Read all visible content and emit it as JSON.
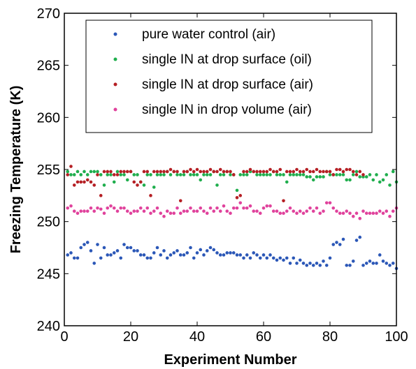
{
  "chart_data": {
    "type": "scatter",
    "title": "",
    "xlabel": "Experiment Number",
    "ylabel": "Freezing Temperature (K)",
    "xlim": [
      0,
      100
    ],
    "ylim": [
      240,
      270
    ],
    "xticks": [
      "0",
      "20",
      "40",
      "60",
      "80",
      "100"
    ],
    "yticks": [
      "240",
      "245",
      "250",
      "255",
      "260",
      "265",
      "270"
    ],
    "grid": false,
    "legend_position": "top",
    "series": [
      {
        "name": "pure water control (air)",
        "color": "#2b57b7",
        "x": [
          1,
          2,
          3,
          4,
          5,
          6,
          7,
          8,
          9,
          10,
          11,
          12,
          13,
          14,
          15,
          16,
          17,
          18,
          19,
          20,
          21,
          22,
          23,
          24,
          25,
          26,
          27,
          28,
          29,
          30,
          31,
          32,
          33,
          34,
          35,
          36,
          37,
          38,
          39,
          40,
          41,
          42,
          43,
          44,
          45,
          46,
          47,
          48,
          49,
          50,
          51,
          52,
          53,
          54,
          55,
          56,
          57,
          58,
          59,
          60,
          61,
          62,
          63,
          64,
          65,
          66,
          67,
          68,
          69,
          70,
          71,
          72,
          73,
          74,
          75,
          76,
          77,
          78,
          79,
          80,
          81,
          82,
          83,
          84,
          85,
          86,
          87,
          88,
          89,
          90,
          91,
          92,
          93,
          94,
          95,
          96,
          97,
          98,
          99,
          100
        ],
        "y": [
          246.8,
          247.0,
          246.5,
          246.5,
          247.5,
          247.8,
          248.0,
          247.2,
          246.0,
          247.8,
          246.5,
          247.5,
          246.8,
          246.8,
          247.0,
          247.2,
          246.5,
          247.8,
          247.5,
          247.5,
          247.2,
          247.2,
          246.8,
          246.8,
          246.5,
          246.5,
          247.0,
          247.5,
          246.8,
          247.2,
          246.5,
          246.8,
          247.0,
          247.2,
          246.8,
          246.8,
          247.0,
          247.5,
          246.5,
          247.0,
          247.3,
          246.8,
          247.2,
          247.5,
          247.3,
          247.0,
          246.8,
          246.8,
          247.0,
          247.0,
          247.0,
          246.8,
          246.8,
          246.5,
          246.8,
          246.5,
          247.0,
          246.8,
          246.5,
          246.8,
          246.5,
          246.8,
          246.5,
          246.3,
          246.5,
          246.3,
          246.5,
          246.0,
          246.5,
          246.0,
          246.3,
          246.0,
          245.8,
          246.0,
          245.8,
          246.0,
          245.8,
          246.2,
          245.8,
          246.5,
          247.8,
          248.0,
          247.8,
          248.3,
          245.8,
          245.8,
          246.2,
          248.2,
          248.5,
          245.8,
          246.0,
          246.2,
          246.0,
          246.0,
          246.8,
          246.2,
          246.0,
          245.8,
          246.0,
          245.5
        ]
      },
      {
        "name": "single IN at drop surface (oil)",
        "color": "#1fae4d",
        "x": [
          1,
          2,
          3,
          4,
          5,
          6,
          7,
          8,
          9,
          10,
          11,
          12,
          13,
          14,
          15,
          16,
          17,
          18,
          19,
          20,
          21,
          22,
          23,
          24,
          25,
          26,
          27,
          28,
          29,
          30,
          31,
          32,
          33,
          34,
          35,
          36,
          37,
          38,
          39,
          40,
          41,
          42,
          43,
          44,
          45,
          46,
          47,
          48,
          49,
          50,
          51,
          52,
          53,
          54,
          55,
          56,
          57,
          58,
          59,
          60,
          61,
          62,
          63,
          64,
          65,
          66,
          67,
          68,
          69,
          70,
          71,
          72,
          73,
          74,
          75,
          76,
          77,
          78,
          79,
          80,
          81,
          82,
          83,
          84,
          85,
          86,
          87,
          88,
          89,
          90,
          91,
          92,
          93,
          94,
          95,
          96,
          97,
          98,
          99,
          100
        ],
        "y": [
          254.8,
          254.5,
          254.5,
          254.8,
          254.5,
          254.8,
          254.5,
          254.8,
          254.8,
          254.8,
          254.5,
          253.5,
          254.5,
          254.5,
          253.8,
          254.8,
          254.5,
          254.5,
          254.0,
          254.8,
          254.5,
          254.5,
          253.8,
          253.5,
          254.5,
          254.5,
          253.3,
          254.5,
          254.5,
          254.5,
          254.8,
          254.5,
          254.8,
          254.5,
          254.5,
          254.5,
          254.8,
          254.5,
          254.5,
          254.5,
          254.0,
          254.5,
          254.5,
          254.5,
          254.8,
          253.5,
          254.5,
          254.5,
          254.8,
          254.5,
          254.5,
          253.0,
          254.5,
          254.5,
          254.5,
          254.8,
          254.8,
          254.5,
          254.5,
          254.5,
          254.5,
          254.5,
          254.8,
          254.5,
          254.5,
          254.5,
          253.8,
          254.5,
          254.5,
          254.5,
          254.5,
          254.5,
          254.3,
          254.3,
          254.0,
          254.3,
          254.3,
          254.3,
          254.8,
          254.5,
          254.5,
          254.5,
          254.5,
          254.5,
          254.0,
          254.0,
          254.5,
          254.8,
          254.3,
          254.3,
          254.3,
          254.5,
          254.0,
          254.5,
          253.8,
          254.0,
          254.5,
          253.5,
          254.8,
          253.8
        ]
      },
      {
        "name": "single IN at drop surface (air)",
        "color": "#b51f24",
        "x": [
          1,
          2,
          3,
          4,
          5,
          6,
          7,
          8,
          9,
          10,
          11,
          12,
          13,
          14,
          15,
          16,
          17,
          18,
          19,
          20,
          21,
          22,
          23,
          24,
          25,
          26,
          27,
          28,
          29,
          30,
          31,
          32,
          33,
          34,
          35,
          36,
          37,
          38,
          39,
          40,
          41,
          42,
          43,
          44,
          45,
          46,
          47,
          48,
          49,
          50,
          51,
          52,
          53,
          54,
          55,
          56,
          57,
          58,
          59,
          60,
          61,
          62,
          63,
          64,
          65,
          66,
          67,
          68,
          69,
          70,
          71,
          72,
          73,
          74,
          75,
          76,
          77,
          78,
          79,
          80,
          81,
          82,
          83,
          84,
          85,
          86,
          87,
          88,
          89,
          90
        ],
        "y": [
          254.5,
          255.3,
          253.5,
          253.8,
          253.8,
          253.8,
          254.0,
          253.8,
          253.5,
          254.5,
          252.5,
          254.8,
          254.8,
          254.8,
          254.5,
          254.5,
          254.8,
          254.8,
          254.8,
          254.8,
          253.8,
          253.5,
          253.8,
          254.8,
          254.8,
          252.5,
          254.8,
          254.8,
          254.8,
          254.8,
          254.8,
          255.0,
          254.8,
          254.8,
          252.0,
          254.8,
          254.8,
          255.0,
          254.8,
          255.0,
          254.8,
          254.8,
          254.8,
          255.0,
          254.8,
          254.8,
          255.0,
          254.8,
          254.8,
          254.8,
          254.5,
          252.3,
          252.5,
          254.8,
          254.8,
          255.0,
          254.8,
          254.8,
          254.8,
          254.8,
          254.8,
          255.0,
          254.8,
          254.8,
          255.0,
          252.0,
          254.8,
          254.8,
          254.8,
          255.0,
          254.8,
          254.8,
          255.0,
          254.8,
          254.8,
          255.0,
          254.8,
          254.8,
          254.8,
          254.8,
          254.5,
          255.0,
          255.0,
          254.8,
          255.0,
          255.0,
          254.8,
          254.5,
          254.8,
          254.5
        ]
      },
      {
        "name": "single IN in drop volume (air)",
        "color": "#e0429c",
        "x": [
          1,
          2,
          3,
          4,
          5,
          6,
          7,
          8,
          9,
          10,
          11,
          12,
          13,
          14,
          15,
          16,
          17,
          18,
          19,
          20,
          21,
          22,
          23,
          24,
          25,
          26,
          27,
          28,
          29,
          30,
          31,
          32,
          33,
          34,
          35,
          36,
          37,
          38,
          39,
          40,
          41,
          42,
          43,
          44,
          45,
          46,
          47,
          48,
          49,
          50,
          51,
          52,
          53,
          54,
          55,
          56,
          57,
          58,
          59,
          60,
          61,
          62,
          63,
          64,
          65,
          66,
          67,
          68,
          69,
          70,
          71,
          72,
          73,
          74,
          75,
          76,
          77,
          78,
          79,
          80,
          81,
          82,
          83,
          84,
          85,
          86,
          87,
          88,
          89,
          90,
          91,
          92,
          93,
          94,
          95,
          96,
          97,
          98,
          99,
          100
        ],
        "y": [
          251.3,
          251.5,
          251.0,
          250.8,
          251.0,
          251.0,
          251.0,
          251.3,
          251.0,
          251.3,
          251.2,
          250.8,
          251.3,
          251.5,
          251.3,
          251.0,
          251.3,
          251.3,
          251.0,
          250.8,
          251.0,
          251.0,
          251.3,
          251.0,
          251.3,
          250.8,
          251.0,
          251.3,
          250.8,
          250.5,
          251.0,
          250.8,
          250.8,
          251.3,
          250.8,
          251.0,
          251.0,
          251.3,
          251.0,
          251.0,
          251.3,
          251.0,
          250.8,
          251.3,
          251.0,
          251.3,
          251.0,
          251.5,
          251.0,
          250.8,
          251.3,
          251.3,
          251.8,
          251.3,
          251.3,
          251.5,
          251.0,
          251.0,
          250.8,
          251.3,
          251.5,
          251.5,
          251.0,
          251.0,
          250.8,
          250.8,
          251.0,
          251.3,
          251.0,
          250.8,
          251.0,
          250.8,
          251.0,
          251.3,
          251.0,
          251.3,
          250.8,
          251.0,
          251.8,
          251.8,
          251.3,
          251.0,
          250.8,
          250.8,
          251.0,
          250.8,
          250.5,
          250.8,
          250.3,
          251.0,
          250.8,
          250.8,
          250.8,
          250.8,
          251.0,
          250.8,
          251.0,
          250.5,
          251.0,
          251.3
        ]
      }
    ]
  }
}
